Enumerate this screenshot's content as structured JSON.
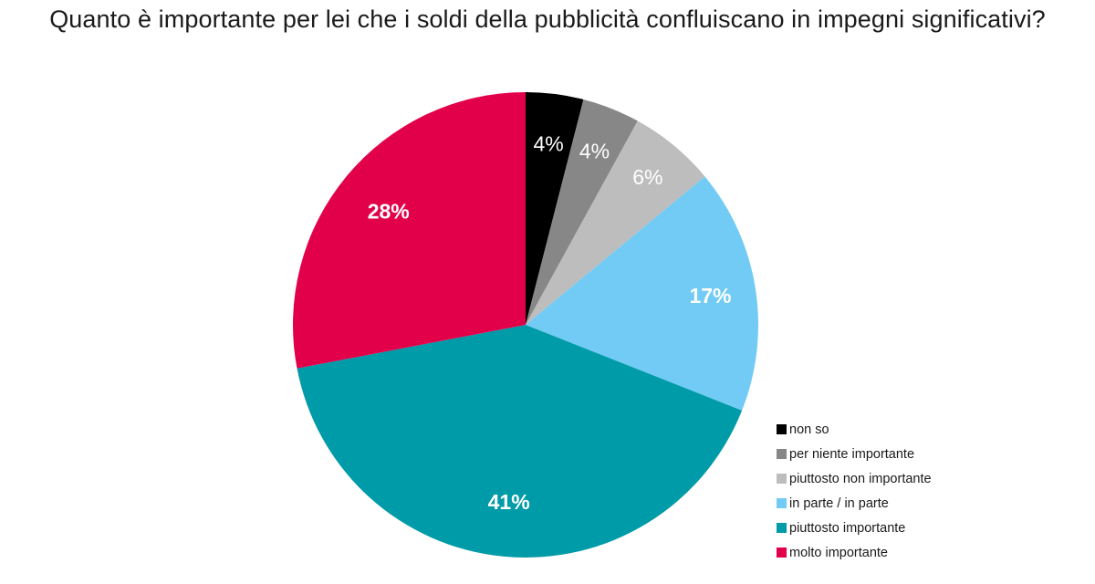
{
  "chart_data": {
    "type": "pie",
    "title": "Quanto è importante per lei che i soldi della pubblicità confluiscano in impegni significativi?",
    "start_angle_deg": 0,
    "direction": "clockwise",
    "legend_position": "bottom-right",
    "slices": [
      {
        "label": "non so",
        "value": 4,
        "display": "4%",
        "color": "#000000",
        "label_color": "#ffffff",
        "label_bold": false
      },
      {
        "label": "per niente importante",
        "value": 4,
        "display": "4%",
        "color": "#878787",
        "label_color": "#ffffff",
        "label_bold": false
      },
      {
        "label": "piuttosto non importante",
        "value": 6,
        "display": "6%",
        "color": "#bdbdbd",
        "label_color": "#ffffff",
        "label_bold": false
      },
      {
        "label": "in parte / in parte",
        "value": 17,
        "display": "17%",
        "color": "#72cbf4",
        "label_color": "#ffffff",
        "label_bold": true
      },
      {
        "label": "piuttosto importante",
        "value": 41,
        "display": "41%",
        "color": "#009ba8",
        "label_color": "#ffffff",
        "label_bold": true
      },
      {
        "label": "molto importante",
        "value": 28,
        "display": "28%",
        "color": "#e2004a",
        "label_color": "#ffffff",
        "label_bold": true
      }
    ]
  }
}
